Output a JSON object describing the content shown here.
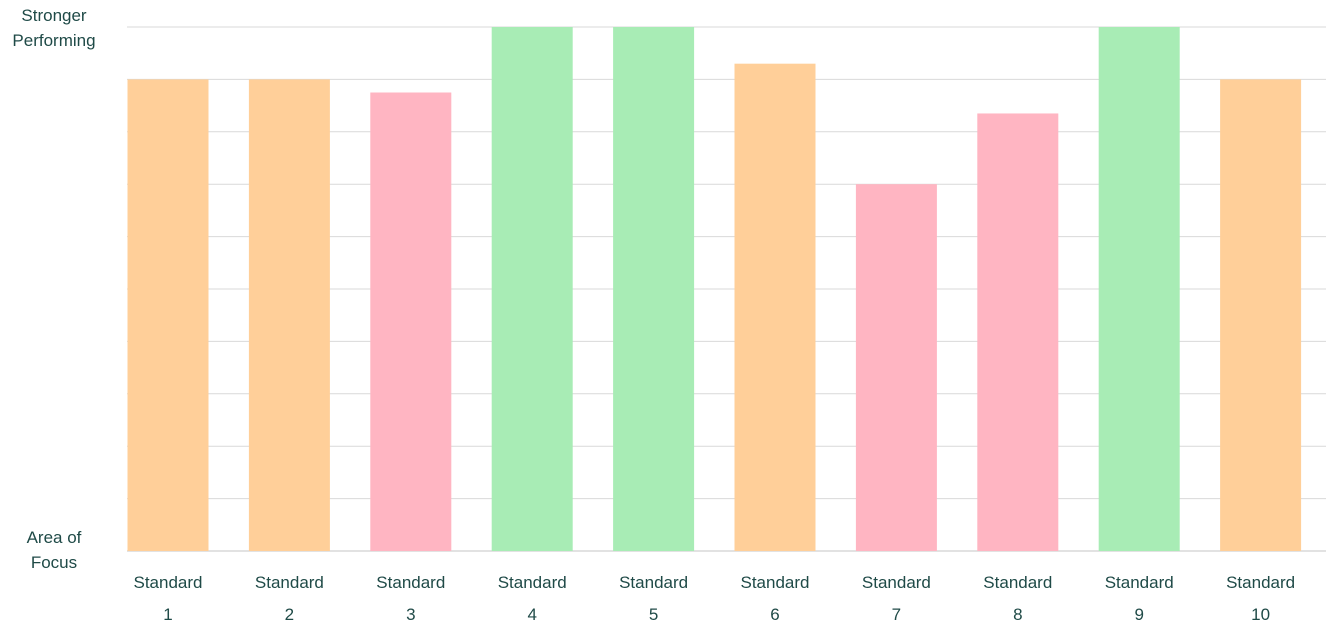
{
  "chart_data": {
    "type": "bar",
    "y_axis_top_label": [
      "Stronger",
      "Performing"
    ],
    "y_axis_bottom_label": [
      "Area of",
      "Focus"
    ],
    "categories": [
      [
        "Standard",
        "1"
      ],
      [
        "Standard",
        "2"
      ],
      [
        "Standard",
        "3"
      ],
      [
        "Standard",
        "4"
      ],
      [
        "Standard",
        "5"
      ],
      [
        "Standard",
        "6"
      ],
      [
        "Standard",
        "7"
      ],
      [
        "Standard",
        "8"
      ],
      [
        "Standard",
        "9"
      ],
      [
        "Standard",
        "10"
      ]
    ],
    "values": [
      9.0,
      9.0,
      8.75,
      10.0,
      10.0,
      9.3,
      7.0,
      8.35,
      10.0,
      9.0
    ],
    "ylim": [
      0,
      10
    ],
    "gridlines": 10,
    "grid": true,
    "bar_colors": [
      "#ffcf99",
      "#ffcf99",
      "#ffb5c2",
      "#a8ecb5",
      "#a8ecb5",
      "#ffcf99",
      "#ffb5c2",
      "#ffb5c2",
      "#a8ecb5",
      "#ffcf99"
    ],
    "grid_color": "#d9d9d9",
    "text_color": "#1f4a47"
  }
}
